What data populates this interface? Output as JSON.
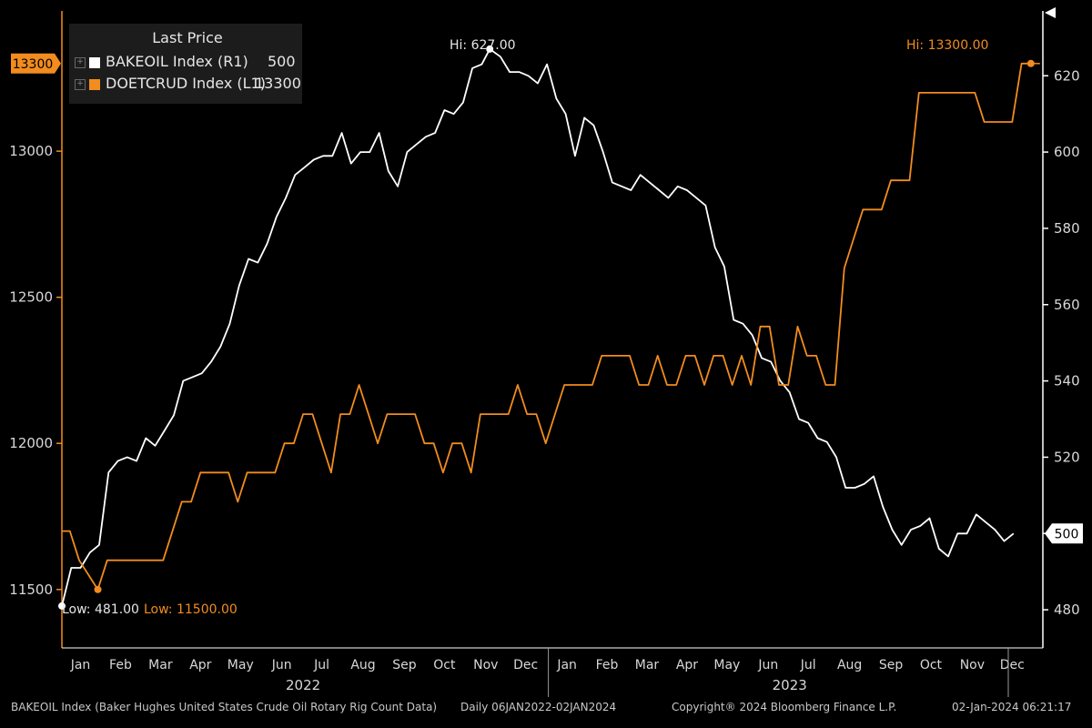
{
  "chart_data": {
    "type": "line",
    "legend": {
      "title": "Last Price",
      "entries": [
        {
          "name": "BAKEOIL Index  (R1)",
          "value": "500",
          "color": "#ffffff"
        },
        {
          "name": "DOETCRUD Index  (L1)",
          "value": "13300",
          "color": "#f28c1e"
        }
      ],
      "placement": "top-left"
    },
    "left_axis": {
      "ticks": [
        "13000",
        "12500",
        "12000",
        "11500"
      ],
      "values": [
        13000,
        12500,
        12000,
        11500
      ],
      "range": [
        11300,
        13480
      ],
      "current_label": "13300",
      "current_value": 13300,
      "color": "#f28c1e"
    },
    "right_axis": {
      "ticks": [
        "620",
        "600",
        "580",
        "560",
        "540",
        "520",
        "500",
        "480"
      ],
      "values": [
        620,
        600,
        580,
        560,
        540,
        520,
        500,
        480
      ],
      "range": [
        470,
        637
      ],
      "current_label": "500",
      "current_value": 500
    },
    "x_axis": {
      "start": "2022-01-01",
      "end": "2024-01-07",
      "months": [
        {
          "label": "Jan",
          "date": "2022-01-15"
        },
        {
          "label": "Feb",
          "date": "2022-02-14"
        },
        {
          "label": "Mar",
          "date": "2022-03-16"
        },
        {
          "label": "Apr",
          "date": "2022-04-15"
        },
        {
          "label": "May",
          "date": "2022-05-15"
        },
        {
          "label": "Jun",
          "date": "2022-06-15"
        },
        {
          "label": "Jul",
          "date": "2022-07-15"
        },
        {
          "label": "Aug",
          "date": "2022-08-15"
        },
        {
          "label": "Sep",
          "date": "2022-09-15"
        },
        {
          "label": "Oct",
          "date": "2022-10-15"
        },
        {
          "label": "Nov",
          "date": "2022-11-15"
        },
        {
          "label": "Dec",
          "date": "2022-12-15"
        },
        {
          "label": "Jan",
          "date": "2023-01-15"
        },
        {
          "label": "Feb",
          "date": "2023-02-14"
        },
        {
          "label": "Mar",
          "date": "2023-03-16"
        },
        {
          "label": "Apr",
          "date": "2023-04-15"
        },
        {
          "label": "May",
          "date": "2023-05-15"
        },
        {
          "label": "Jun",
          "date": "2023-06-15"
        },
        {
          "label": "Jul",
          "date": "2023-07-15"
        },
        {
          "label": "Aug",
          "date": "2023-08-15"
        },
        {
          "label": "Sep",
          "date": "2023-09-15"
        },
        {
          "label": "Oct",
          "date": "2023-10-15"
        },
        {
          "label": "Nov",
          "date": "2023-11-15"
        },
        {
          "label": "Dec",
          "date": "2023-12-15"
        }
      ],
      "years": [
        {
          "label": "2022",
          "date": "2022-07-01"
        },
        {
          "label": "2023",
          "date": "2023-07-01"
        }
      ],
      "year_break": "2023-01-01"
    },
    "annotations": {
      "hi_bakeoil": {
        "text": "Hi: 627.00",
        "date": "2022-11-18",
        "value": 627
      },
      "hi_doetcrud": {
        "text": "Hi: 13300.00",
        "date": "2023-12-29",
        "value": 13300
      },
      "low_bakeoil": {
        "text": "Low: 481.00",
        "date": "2022-01-01",
        "value": 481
      },
      "low_doetcrud": {
        "text": "Low: 11500.00",
        "date": "2022-01-28",
        "value": 11500
      }
    },
    "series": [
      {
        "name": "BAKEOIL Index",
        "axis": "right",
        "color": "#ffffff",
        "points": [
          [
            "2022-01-01",
            481
          ],
          [
            "2022-01-08",
            491
          ],
          [
            "2022-01-15",
            491
          ],
          [
            "2022-01-22",
            495
          ],
          [
            "2022-01-29",
            497
          ],
          [
            "2022-02-05",
            516
          ],
          [
            "2022-02-12",
            519
          ],
          [
            "2022-02-19",
            520
          ],
          [
            "2022-02-26",
            519
          ],
          [
            "2022-03-05",
            525
          ],
          [
            "2022-03-12",
            523
          ],
          [
            "2022-03-19",
            527
          ],
          [
            "2022-03-26",
            531
          ],
          [
            "2022-04-02",
            540
          ],
          [
            "2022-04-09",
            541
          ],
          [
            "2022-04-16",
            542
          ],
          [
            "2022-04-23",
            545
          ],
          [
            "2022-04-30",
            549
          ],
          [
            "2022-05-07",
            555
          ],
          [
            "2022-05-14",
            565
          ],
          [
            "2022-05-21",
            572
          ],
          [
            "2022-05-28",
            571
          ],
          [
            "2022-06-04",
            576
          ],
          [
            "2022-06-11",
            583
          ],
          [
            "2022-06-18",
            588
          ],
          [
            "2022-06-25",
            594
          ],
          [
            "2022-07-02",
            596
          ],
          [
            "2022-07-09",
            598
          ],
          [
            "2022-07-16",
            599
          ],
          [
            "2022-07-23",
            599
          ],
          [
            "2022-07-30",
            605
          ],
          [
            "2022-08-06",
            597
          ],
          [
            "2022-08-13",
            600
          ],
          [
            "2022-08-20",
            600
          ],
          [
            "2022-08-27",
            605
          ],
          [
            "2022-09-03",
            595
          ],
          [
            "2022-09-10",
            591
          ],
          [
            "2022-09-17",
            600
          ],
          [
            "2022-09-24",
            602
          ],
          [
            "2022-10-01",
            604
          ],
          [
            "2022-10-08",
            605
          ],
          [
            "2022-10-15",
            611
          ],
          [
            "2022-10-22",
            610
          ],
          [
            "2022-10-29",
            613
          ],
          [
            "2022-11-05",
            622
          ],
          [
            "2022-11-12",
            623
          ],
          [
            "2022-11-18",
            627
          ],
          [
            "2022-11-26",
            625
          ],
          [
            "2022-12-03",
            621
          ],
          [
            "2022-12-10",
            621
          ],
          [
            "2022-12-17",
            620
          ],
          [
            "2022-12-24",
            618
          ],
          [
            "2022-12-31",
            623
          ],
          [
            "2023-01-07",
            614
          ],
          [
            "2023-01-14",
            610
          ],
          [
            "2023-01-21",
            599
          ],
          [
            "2023-01-28",
            609
          ],
          [
            "2023-02-04",
            607
          ],
          [
            "2023-02-11",
            600
          ],
          [
            "2023-02-18",
            592
          ],
          [
            "2023-02-25",
            591
          ],
          [
            "2023-03-04",
            590
          ],
          [
            "2023-03-11",
            594
          ],
          [
            "2023-03-18",
            592
          ],
          [
            "2023-03-25",
            590
          ],
          [
            "2023-04-01",
            588
          ],
          [
            "2023-04-08",
            591
          ],
          [
            "2023-04-15",
            590
          ],
          [
            "2023-04-22",
            588
          ],
          [
            "2023-04-29",
            586
          ],
          [
            "2023-05-06",
            575
          ],
          [
            "2023-05-13",
            570
          ],
          [
            "2023-05-20",
            556
          ],
          [
            "2023-05-27",
            555
          ],
          [
            "2023-06-03",
            552
          ],
          [
            "2023-06-10",
            546
          ],
          [
            "2023-06-17",
            545
          ],
          [
            "2023-06-24",
            540
          ],
          [
            "2023-07-01",
            537
          ],
          [
            "2023-07-08",
            530
          ],
          [
            "2023-07-15",
            529
          ],
          [
            "2023-07-22",
            525
          ],
          [
            "2023-07-29",
            524
          ],
          [
            "2023-08-05",
            520
          ],
          [
            "2023-08-12",
            512
          ],
          [
            "2023-08-19",
            512
          ],
          [
            "2023-08-26",
            513
          ],
          [
            "2023-09-02",
            515
          ],
          [
            "2023-09-09",
            507
          ],
          [
            "2023-09-16",
            501
          ],
          [
            "2023-09-23",
            497
          ],
          [
            "2023-09-30",
            501
          ],
          [
            "2023-10-07",
            502
          ],
          [
            "2023-10-14",
            504
          ],
          [
            "2023-10-21",
            496
          ],
          [
            "2023-10-28",
            494
          ],
          [
            "2023-11-04",
            500
          ],
          [
            "2023-11-11",
            500
          ],
          [
            "2023-11-18",
            505
          ],
          [
            "2023-11-25",
            503
          ],
          [
            "2023-12-02",
            501
          ],
          [
            "2023-12-09",
            498
          ],
          [
            "2023-12-16",
            500
          ]
        ]
      },
      {
        "name": "DOETCRUD Index",
        "axis": "left",
        "color": "#f28c1e",
        "points": [
          [
            "2022-01-01",
            11700
          ],
          [
            "2022-01-07",
            11700
          ],
          [
            "2022-01-14",
            11600
          ],
          [
            "2022-01-28",
            11500
          ],
          [
            "2022-02-04",
            11600
          ],
          [
            "2022-02-11",
            11600
          ],
          [
            "2022-02-18",
            11600
          ],
          [
            "2022-03-04",
            11600
          ],
          [
            "2022-03-18",
            11600
          ],
          [
            "2022-04-01",
            11800
          ],
          [
            "2022-04-08",
            11800
          ],
          [
            "2022-04-15",
            11900
          ],
          [
            "2022-04-22",
            11900
          ],
          [
            "2022-04-29",
            11900
          ],
          [
            "2022-05-06",
            11900
          ],
          [
            "2022-05-13",
            11800
          ],
          [
            "2022-05-20",
            11900
          ],
          [
            "2022-05-27",
            11900
          ],
          [
            "2022-06-03",
            11900
          ],
          [
            "2022-06-10",
            11900
          ],
          [
            "2022-06-17",
            12000
          ],
          [
            "2022-06-24",
            12000
          ],
          [
            "2022-07-01",
            12100
          ],
          [
            "2022-07-08",
            12100
          ],
          [
            "2022-07-15",
            12000
          ],
          [
            "2022-07-22",
            11900
          ],
          [
            "2022-07-29",
            12100
          ],
          [
            "2022-08-05",
            12100
          ],
          [
            "2022-08-12",
            12200
          ],
          [
            "2022-08-19",
            12100
          ],
          [
            "2022-08-26",
            12000
          ],
          [
            "2022-09-02",
            12100
          ],
          [
            "2022-09-09",
            12100
          ],
          [
            "2022-09-16",
            12100
          ],
          [
            "2022-09-23",
            12100
          ],
          [
            "2022-09-30",
            12000
          ],
          [
            "2022-10-07",
            12000
          ],
          [
            "2022-10-14",
            11900
          ],
          [
            "2022-10-21",
            12000
          ],
          [
            "2022-10-28",
            12000
          ],
          [
            "2022-11-04",
            11900
          ],
          [
            "2022-11-11",
            12100
          ],
          [
            "2022-11-18",
            12100
          ],
          [
            "2022-11-25",
            12100
          ],
          [
            "2022-12-02",
            12100
          ],
          [
            "2022-12-09",
            12200
          ],
          [
            "2022-12-16",
            12100
          ],
          [
            "2022-12-23",
            12100
          ],
          [
            "2022-12-30",
            12000
          ],
          [
            "2023-01-06",
            12100
          ],
          [
            "2023-01-13",
            12200
          ],
          [
            "2023-01-20",
            12200
          ],
          [
            "2023-01-27",
            12200
          ],
          [
            "2023-02-03",
            12200
          ],
          [
            "2023-02-10",
            12300
          ],
          [
            "2023-02-17",
            12300
          ],
          [
            "2023-02-24",
            12300
          ],
          [
            "2023-03-03",
            12300
          ],
          [
            "2023-03-10",
            12200
          ],
          [
            "2023-03-17",
            12200
          ],
          [
            "2023-03-24",
            12300
          ],
          [
            "2023-03-31",
            12200
          ],
          [
            "2023-04-07",
            12200
          ],
          [
            "2023-04-14",
            12300
          ],
          [
            "2023-04-21",
            12300
          ],
          [
            "2023-04-28",
            12200
          ],
          [
            "2023-05-05",
            12300
          ],
          [
            "2023-05-12",
            12300
          ],
          [
            "2023-05-19",
            12200
          ],
          [
            "2023-05-26",
            12300
          ],
          [
            "2023-06-02",
            12200
          ],
          [
            "2023-06-09",
            12400
          ],
          [
            "2023-06-16",
            12400
          ],
          [
            "2023-06-23",
            12200
          ],
          [
            "2023-06-30",
            12200
          ],
          [
            "2023-07-07",
            12400
          ],
          [
            "2023-07-14",
            12300
          ],
          [
            "2023-07-21",
            12300
          ],
          [
            "2023-07-28",
            12200
          ],
          [
            "2023-08-04",
            12200
          ],
          [
            "2023-08-11",
            12600
          ],
          [
            "2023-08-18",
            12700
          ],
          [
            "2023-08-25",
            12800
          ],
          [
            "2023-09-01",
            12800
          ],
          [
            "2023-09-08",
            12800
          ],
          [
            "2023-09-15",
            12900
          ],
          [
            "2023-09-22",
            12900
          ],
          [
            "2023-09-29",
            12900
          ],
          [
            "2023-10-06",
            13200
          ],
          [
            "2023-10-13",
            13200
          ],
          [
            "2023-10-20",
            13200
          ],
          [
            "2023-11-03",
            13200
          ],
          [
            "2023-11-17",
            13200
          ],
          [
            "2023-11-24",
            13100
          ],
          [
            "2023-12-01",
            13100
          ],
          [
            "2023-12-15",
            13100
          ],
          [
            "2023-12-22",
            13300
          ],
          [
            "2023-12-29",
            13300
          ]
        ]
      }
    ]
  },
  "footer": {
    "source": "BAKEOIL Index (Baker Hughes United States Crude Oil Rotary Rig Count Data)",
    "range": "Daily 06JAN2022-02JAN2024",
    "copyright": "Copyright® 2024 Bloomberg Finance L.P.",
    "timestamp": "02-Jan-2024 06:21:17"
  }
}
